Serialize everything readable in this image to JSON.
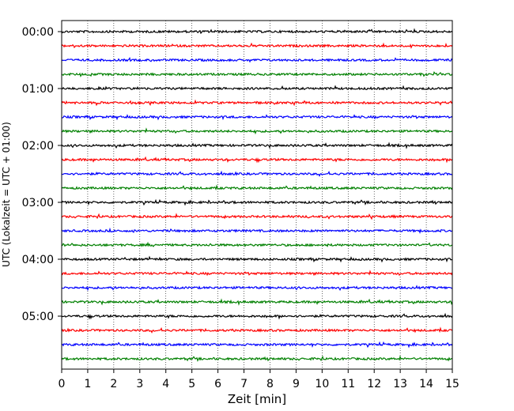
{
  "chart_data": {
    "type": "line",
    "title": "",
    "xlabel": "Zeit  [min]",
    "ylabel": "UTC (Lokalzeit = UTC + 01:00)",
    "x_ticks": [
      "0",
      "1",
      "2",
      "3",
      "4",
      "5",
      "6",
      "7",
      "8",
      "9",
      "10",
      "11",
      "12",
      "13",
      "14",
      "15"
    ],
    "xlim": [
      0,
      15
    ],
    "hour_labels": [
      "00:00",
      "01:00",
      "02:00",
      "03:00",
      "04:00",
      "05:00"
    ],
    "traces_per_hour": 4,
    "trace_count": 24,
    "trace_interval_min": 15,
    "trace_colors": [
      "#000000",
      "#ff0000",
      "#0000ff",
      "#008000"
    ],
    "grid": "vertical dotted lines at each minute"
  }
}
